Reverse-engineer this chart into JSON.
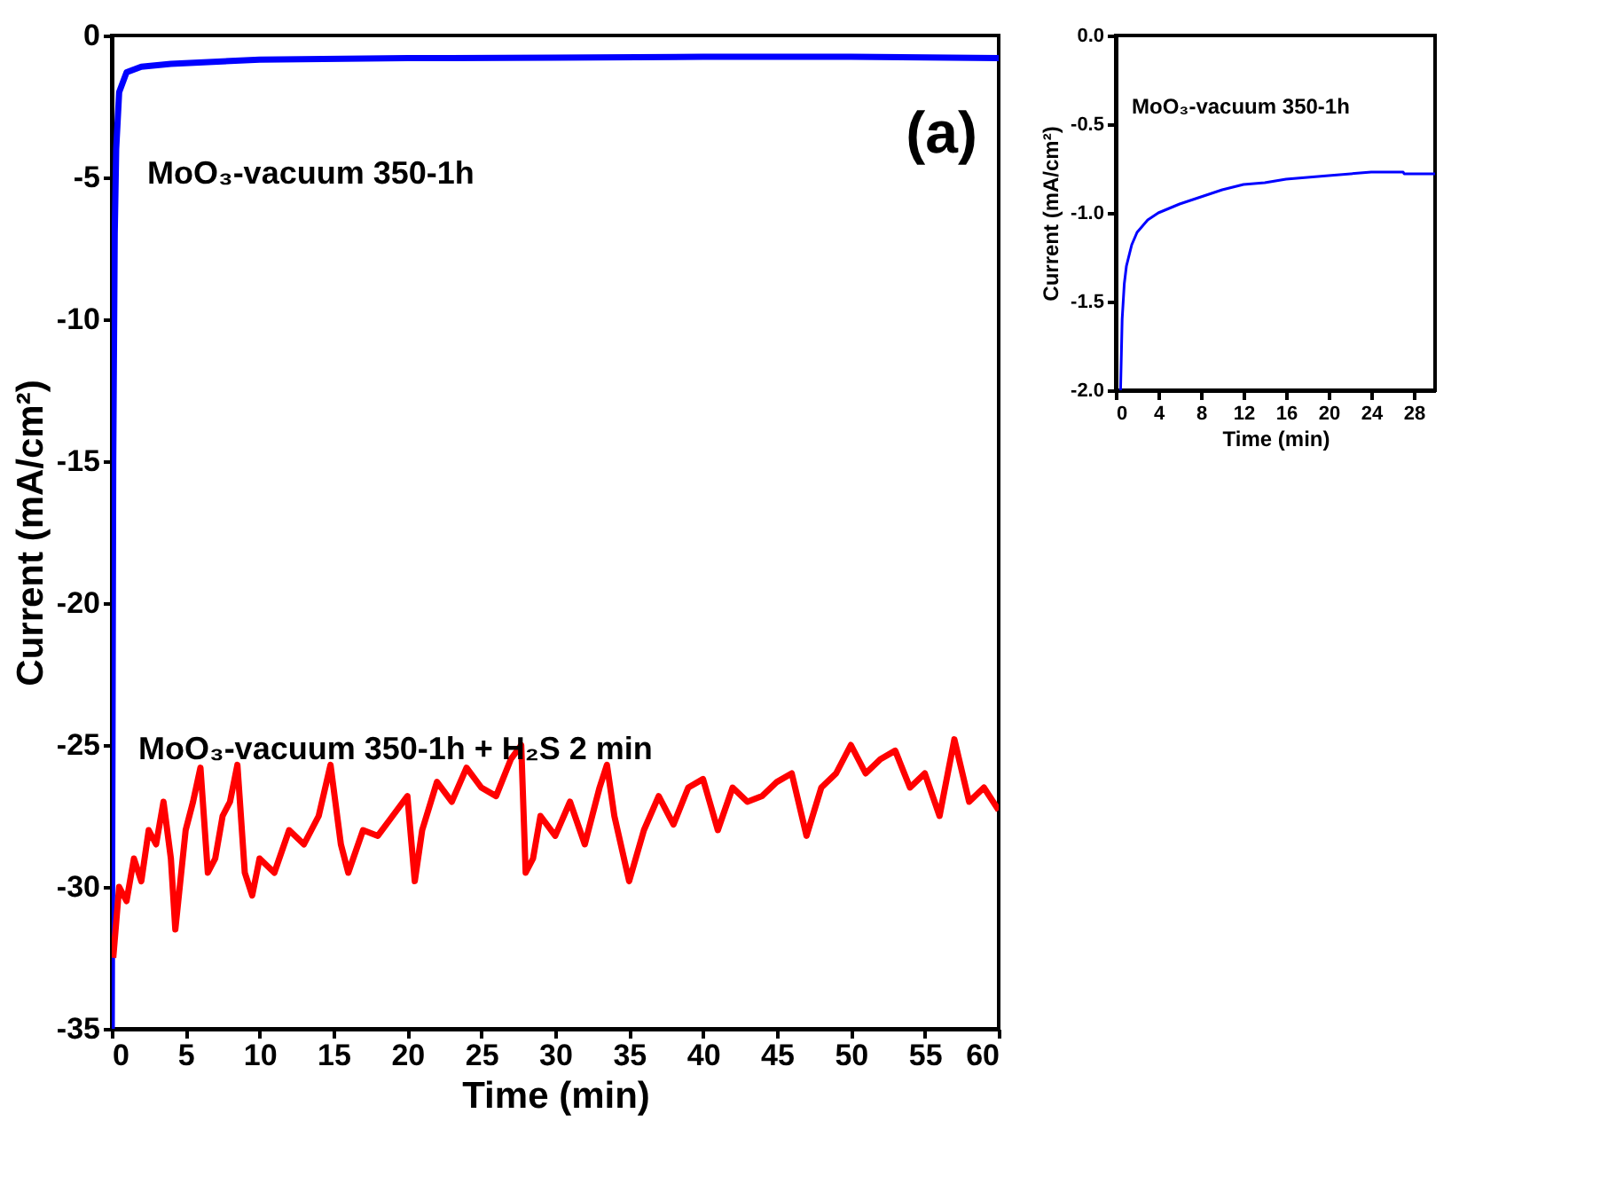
{
  "chart_data": [
    {
      "type": "line",
      "xlabel": "Time (min)",
      "ylabel": "Current (mA/cm²)",
      "xlim": [
        0,
        60
      ],
      "ylim": [
        -35,
        0
      ],
      "xticks": [
        0,
        5,
        10,
        15,
        20,
        25,
        30,
        35,
        40,
        45,
        50,
        55,
        60
      ],
      "yticks": [
        0,
        -5,
        -10,
        -15,
        -20,
        -25,
        -30,
        -35
      ],
      "grid": false,
      "annotations": [
        "(a)"
      ],
      "series": [
        {
          "name": "MoO₃-vacuum 350-1h",
          "color": "#0000ff",
          "x": [
            0,
            0.05,
            0.1,
            0.2,
            0.3,
            0.5,
            1,
            2,
            4,
            10,
            20,
            30,
            40,
            50,
            60
          ],
          "values": [
            -35,
            -25,
            -15,
            -7,
            -4,
            -2,
            -1.3,
            -1.1,
            -1.0,
            -0.85,
            -0.8,
            -0.78,
            -0.75,
            -0.75,
            -0.8
          ]
        },
        {
          "name": "MoO₃-vacuum 350-1h + H₂S 2 min",
          "color": "#ff0000",
          "x": [
            0.1,
            0.5,
            1,
            1.5,
            2,
            2.5,
            3,
            3.5,
            4,
            4.3,
            4.6,
            5,
            5.5,
            6,
            6.5,
            7,
            7.5,
            8,
            8.5,
            9,
            9.5,
            10,
            11,
            12,
            13,
            14,
            14.8,
            15.5,
            16,
            17,
            18,
            19,
            20,
            20.5,
            21,
            22,
            23,
            24,
            25,
            26,
            27,
            27.7,
            28,
            28.5,
            29,
            30,
            31,
            32,
            33,
            33.5,
            34,
            35,
            36,
            37,
            38,
            39,
            40,
            41,
            42,
            43,
            44,
            45,
            46,
            47,
            48,
            49,
            50,
            51,
            52,
            53,
            54,
            55,
            56,
            57,
            58,
            59,
            60
          ],
          "values": [
            -32.5,
            -30,
            -30.5,
            -29,
            -29.8,
            -28,
            -28.5,
            -27,
            -29,
            -31.5,
            -30,
            -28,
            -27,
            -25.8,
            -29.5,
            -29,
            -27.5,
            -27,
            -25.7,
            -29.5,
            -30.3,
            -29,
            -29.5,
            -28,
            -28.5,
            -27.5,
            -25.7,
            -28.5,
            -29.5,
            -28,
            -28.2,
            -27.5,
            -26.8,
            -29.8,
            -28,
            -26.3,
            -27,
            -25.8,
            -26.5,
            -26.8,
            -25.5,
            -25,
            -29.5,
            -29,
            -27.5,
            -28.2,
            -27,
            -28.5,
            -26.5,
            -25.7,
            -27.5,
            -29.8,
            -28,
            -26.8,
            -27.8,
            -26.5,
            -26.2,
            -28,
            -26.5,
            -27,
            -26.8,
            -26.3,
            -26,
            -28.2,
            -26.5,
            -26,
            -25,
            -26,
            -25.5,
            -25.2,
            -26.5,
            -26,
            -27.5,
            -24.8,
            -27,
            -26.5,
            -27.3
          ]
        }
      ]
    },
    {
      "type": "line",
      "xlabel": "Time (min)",
      "ylabel": "Current (mA/cm²)",
      "xlim": [
        0,
        30
      ],
      "ylim": [
        -2,
        0
      ],
      "xticks": [
        0,
        4,
        8,
        12,
        16,
        20,
        24,
        28
      ],
      "yticks": [
        {
          "value": 0,
          "label": "0.0"
        },
        {
          "value": -0.5,
          "label": "-0.5"
        },
        {
          "value": -1,
          "label": "-1.0"
        },
        {
          "value": -1.5,
          "label": "-1.5"
        },
        {
          "value": -2,
          "label": "-2.0"
        }
      ],
      "grid": false,
      "series": [
        {
          "name": "MoO₃-vacuum 350-1h",
          "color": "#0000ff",
          "x": [
            0.45,
            0.6,
            0.8,
            1,
            1.5,
            2,
            3,
            4,
            6,
            8,
            10,
            12,
            14,
            16,
            20,
            24,
            27,
            27.1,
            30
          ],
          "values": [
            -2.0,
            -1.6,
            -1.4,
            -1.3,
            -1.18,
            -1.11,
            -1.04,
            -1.0,
            -0.95,
            -0.91,
            -0.87,
            -0.84,
            -0.83,
            -0.81,
            -0.79,
            -0.77,
            -0.77,
            -0.78,
            -0.78
          ]
        }
      ]
    }
  ]
}
